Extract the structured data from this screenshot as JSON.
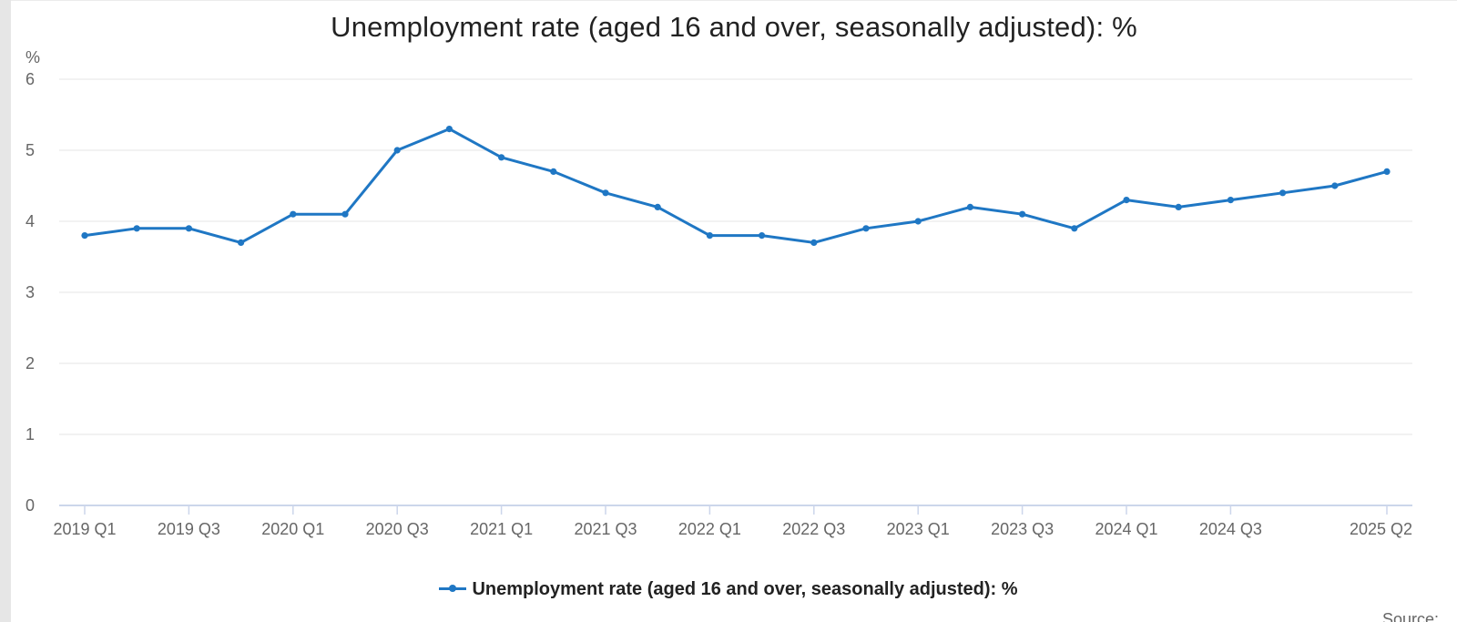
{
  "chart_data": {
    "type": "line",
    "title": "Unemployment rate (aged 16 and over, seasonally adjusted): %",
    "ylabel": "%",
    "xlabel": "",
    "ylim": [
      0,
      6
    ],
    "yticks": [
      0,
      1,
      2,
      3,
      4,
      5,
      6
    ],
    "grid": true,
    "legend_position": "bottom",
    "categories": [
      "2019 Q1",
      "2019 Q2",
      "2019 Q3",
      "2019 Q4",
      "2020 Q1",
      "2020 Q2",
      "2020 Q3",
      "2020 Q4",
      "2021 Q1",
      "2021 Q2",
      "2021 Q3",
      "2021 Q4",
      "2022 Q1",
      "2022 Q2",
      "2022 Q3",
      "2022 Q4",
      "2023 Q1",
      "2023 Q2",
      "2023 Q3",
      "2023 Q4",
      "2024 Q1",
      "2024 Q2",
      "2024 Q3",
      "2024 Q4",
      "2025 Q1",
      "2025 Q2"
    ],
    "x_tick_labels": [
      "2019 Q1",
      "2019 Q3",
      "2020 Q1",
      "2020 Q3",
      "2021 Q1",
      "2021 Q3",
      "2022 Q1",
      "2022 Q3",
      "2023 Q1",
      "2023 Q3",
      "2024 Q1",
      "2024 Q3",
      "2025 Q2"
    ],
    "series": [
      {
        "name": "Unemployment rate (aged 16 and over, seasonally adjusted): %",
        "color": "#1f77c4",
        "values": [
          3.8,
          3.9,
          3.9,
          3.7,
          4.1,
          4.1,
          5.0,
          5.3,
          4.9,
          4.7,
          4.4,
          4.2,
          3.8,
          3.8,
          3.7,
          3.9,
          4.0,
          4.2,
          4.1,
          3.9,
          4.3,
          4.2,
          4.3,
          4.4,
          4.5,
          4.7
        ]
      }
    ]
  },
  "source_label": "Source:",
  "colors": {
    "line": "#1f77c4",
    "grid": "#e6e6e6",
    "axis": "#ccd6eb",
    "text": "#666666"
  }
}
